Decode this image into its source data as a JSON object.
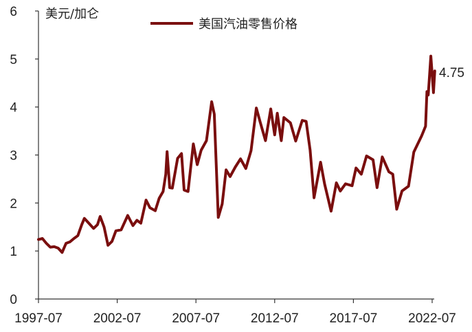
{
  "chart_data": {
    "type": "line",
    "title": "",
    "unit_label": "美元/加仑",
    "xlabel": "",
    "ylabel": "",
    "ylim": [
      0,
      6
    ],
    "y_ticks": [
      0,
      1,
      2,
      3,
      4,
      5,
      6
    ],
    "y_tick_labels": [
      "0",
      "1",
      "2",
      "3",
      "4",
      "5",
      "6"
    ],
    "x_ticks": [
      "1997-07",
      "2002-07",
      "2007-07",
      "2012-07",
      "2017-07",
      "2022-07"
    ],
    "x_range": [
      "1997-07",
      "2022-09"
    ],
    "grid": false,
    "legend_position": "top-center",
    "colors": {
      "series": "#7a0e0e",
      "axis": "#333333"
    },
    "last_value_label": "4.75",
    "series": [
      {
        "name": "美国汽油零售价格",
        "points": [
          [
            "1997-07",
            1.24
          ],
          [
            "1997-10",
            1.26
          ],
          [
            "1998-01",
            1.16
          ],
          [
            "1998-04",
            1.08
          ],
          [
            "1998-07",
            1.09
          ],
          [
            "1998-10",
            1.06
          ],
          [
            "1999-01",
            0.97
          ],
          [
            "1999-04",
            1.16
          ],
          [
            "1999-07",
            1.19
          ],
          [
            "1999-10",
            1.26
          ],
          [
            "2000-01",
            1.32
          ],
          [
            "2000-04",
            1.55
          ],
          [
            "2000-06",
            1.68
          ],
          [
            "2000-09",
            1.59
          ],
          [
            "2001-01",
            1.47
          ],
          [
            "2001-04",
            1.55
          ],
          [
            "2001-06",
            1.72
          ],
          [
            "2001-09",
            1.5
          ],
          [
            "2001-12",
            1.12
          ],
          [
            "2002-03",
            1.2
          ],
          [
            "2002-06",
            1.42
          ],
          [
            "2002-10",
            1.44
          ],
          [
            "2003-03",
            1.74
          ],
          [
            "2003-07",
            1.53
          ],
          [
            "2003-10",
            1.64
          ],
          [
            "2004-01",
            1.58
          ],
          [
            "2004-05",
            2.06
          ],
          [
            "2004-08",
            1.9
          ],
          [
            "2004-12",
            1.84
          ],
          [
            "2005-03",
            2.1
          ],
          [
            "2005-06",
            2.24
          ],
          [
            "2005-08",
            2.6
          ],
          [
            "2005-09",
            3.07
          ],
          [
            "2005-11",
            2.32
          ],
          [
            "2006-01",
            2.31
          ],
          [
            "2006-05",
            2.93
          ],
          [
            "2006-08",
            3.03
          ],
          [
            "2006-10",
            2.27
          ],
          [
            "2007-01",
            2.24
          ],
          [
            "2007-05",
            3.23
          ],
          [
            "2007-08",
            2.8
          ],
          [
            "2007-11",
            3.1
          ],
          [
            "2008-03",
            3.3
          ],
          [
            "2008-07",
            4.11
          ],
          [
            "2008-09",
            3.85
          ],
          [
            "2008-12",
            1.7
          ],
          [
            "2009-03",
            1.98
          ],
          [
            "2009-06",
            2.69
          ],
          [
            "2009-09",
            2.55
          ],
          [
            "2010-01",
            2.75
          ],
          [
            "2010-05",
            2.92
          ],
          [
            "2010-09",
            2.72
          ],
          [
            "2011-01",
            3.09
          ],
          [
            "2011-05",
            3.98
          ],
          [
            "2011-08",
            3.68
          ],
          [
            "2011-12",
            3.3
          ],
          [
            "2012-04",
            3.96
          ],
          [
            "2012-07",
            3.42
          ],
          [
            "2012-09",
            3.87
          ],
          [
            "2012-12",
            3.3
          ],
          [
            "2013-02",
            3.78
          ],
          [
            "2013-07",
            3.67
          ],
          [
            "2013-11",
            3.29
          ],
          [
            "2014-04",
            3.72
          ],
          [
            "2014-07",
            3.7
          ],
          [
            "2014-10",
            3.1
          ],
          [
            "2015-01",
            2.11
          ],
          [
            "2015-06",
            2.85
          ],
          [
            "2015-09",
            2.4
          ],
          [
            "2016-02",
            1.83
          ],
          [
            "2016-06",
            2.42
          ],
          [
            "2016-09",
            2.25
          ],
          [
            "2017-01",
            2.4
          ],
          [
            "2017-06",
            2.36
          ],
          [
            "2017-09",
            2.73
          ],
          [
            "2018-01",
            2.6
          ],
          [
            "2018-05",
            2.98
          ],
          [
            "2018-10",
            2.9
          ],
          [
            "2019-01",
            2.32
          ],
          [
            "2019-05",
            2.96
          ],
          [
            "2019-10",
            2.65
          ],
          [
            "2020-01",
            2.6
          ],
          [
            "2020-04",
            1.87
          ],
          [
            "2020-08",
            2.25
          ],
          [
            "2021-01",
            2.35
          ],
          [
            "2021-05",
            3.06
          ],
          [
            "2021-11",
            3.4
          ],
          [
            "2022-02",
            3.6
          ],
          [
            "2022-03",
            4.32
          ],
          [
            "2022-04",
            4.25
          ],
          [
            "2022-06",
            5.06
          ],
          [
            "2022-08",
            4.3
          ],
          [
            "2022-09",
            4.75
          ]
        ]
      }
    ]
  }
}
